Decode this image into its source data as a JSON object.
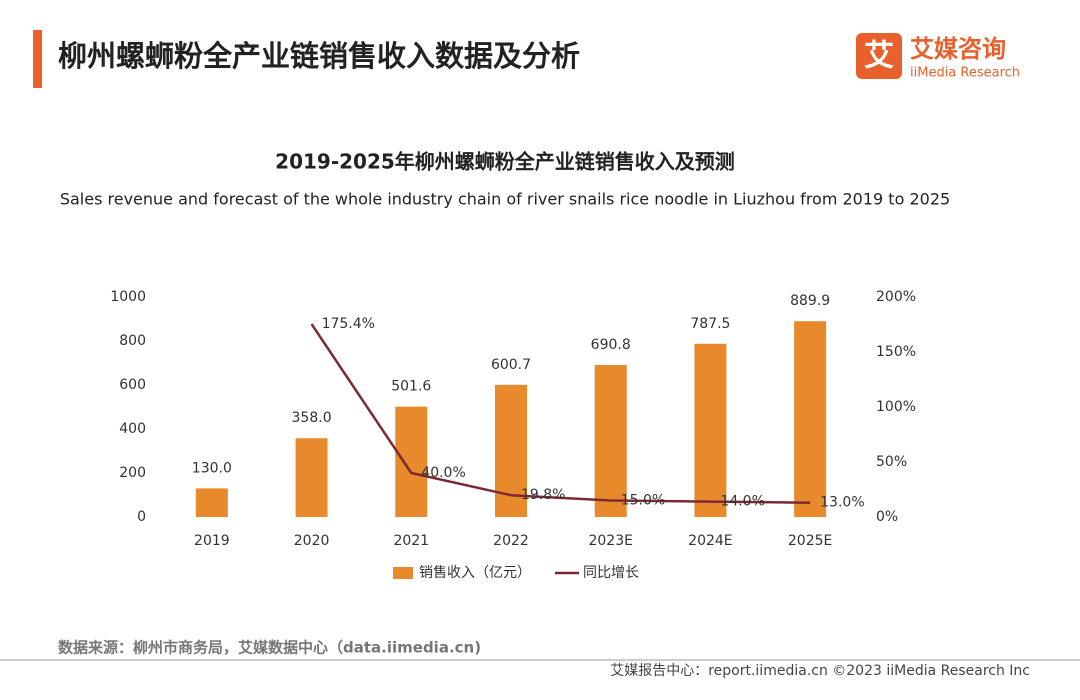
{
  "header": {
    "title": "柳州螺蛳粉全产业链销售收入数据及分析",
    "logo_cn": "艾媒咨询",
    "logo_en": "iiMedia Research"
  },
  "chart_data": {
    "type": "bar-line",
    "title": "2019-2025年柳州螺蛳粉全产业链销售收入及预测",
    "subtitle": "Sales revenue and forecast of the whole industry chain of river snails rice noodle in Liuzhou  from 2019 to 2025",
    "categories": [
      "2019",
      "2020",
      "2021",
      "2022",
      "2023E",
      "2024E",
      "2025E"
    ],
    "series": [
      {
        "name": "销售收入（亿元）",
        "type": "bar",
        "color": "#e8892b",
        "values": [
          130.0,
          358.0,
          501.6,
          600.7,
          690.8,
          787.5,
          889.9
        ],
        "value_labels": [
          "130.0",
          "358.0",
          "501.6",
          "600.7",
          "690.8",
          "787.5",
          "889.9"
        ]
      },
      {
        "name": "同比增长",
        "type": "line",
        "axis": "y2",
        "color": "#7b2a35",
        "values": [
          null,
          175.4,
          40.0,
          19.8,
          15.0,
          14.0,
          13.0
        ],
        "value_labels": [
          null,
          "175.4%",
          "40.0%",
          "19.8%",
          "15.0%",
          "14.0%",
          "13.0%"
        ]
      }
    ],
    "ylim": [
      0,
      1000
    ],
    "yticks": [
      0,
      200,
      400,
      600,
      800,
      1000
    ],
    "y2lim": [
      0,
      200
    ],
    "y2ticks": [
      {
        "value": 0,
        "label": "0%"
      },
      {
        "value": 50,
        "label": "50%"
      },
      {
        "value": 100,
        "label": "100%"
      },
      {
        "value": 150,
        "label": "150%"
      },
      {
        "value": 200,
        "label": "200%"
      }
    ],
    "legend": "bottom",
    "grid": false
  },
  "footer": {
    "source": "数据来源：柳州市商务局，艾媒数据中心（data.iimedia.cn)",
    "copyright": "艾媒报告中心：report.iimedia.cn   ©2023  iiMedia Research  Inc"
  }
}
